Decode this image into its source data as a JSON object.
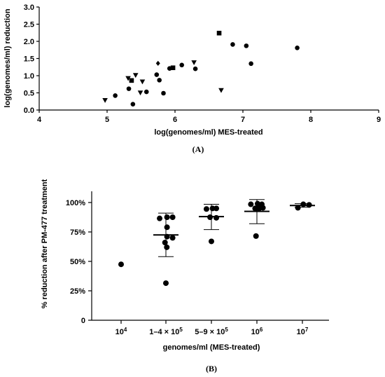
{
  "chart_data": [
    {
      "type": "scatter",
      "panel_label": "(A)",
      "xlabel": "log(genomes/ml) MES-treated",
      "ylabel": "log(genomes/ml) reduction",
      "xlim": [
        4,
        9
      ],
      "ylim": [
        0,
        3.0
      ],
      "x_ticks": [
        "4",
        "5",
        "6",
        "7",
        "8",
        "9"
      ],
      "y_ticks": [
        "0.0",
        "0.5",
        "1.0",
        "1.5",
        "2.0",
        "2.5",
        "3.0"
      ],
      "grid": false,
      "series": [
        {
          "marker": "circle",
          "points": [
            [
              5.12,
              0.42
            ],
            [
              5.32,
              0.62
            ],
            [
              5.38,
              0.17
            ],
            [
              5.58,
              0.53
            ],
            [
              5.73,
              1.03
            ],
            [
              5.77,
              0.87
            ],
            [
              5.83,
              0.49
            ],
            [
              5.92,
              1.21
            ],
            [
              6.1,
              1.31
            ],
            [
              6.3,
              1.2
            ],
            [
              6.85,
              1.91
            ],
            [
              7.05,
              1.87
            ],
            [
              7.12,
              1.35
            ],
            [
              7.8,
              1.81
            ]
          ]
        },
        {
          "marker": "triangle-down",
          "points": [
            [
              4.97,
              0.28
            ],
            [
              5.31,
              0.92
            ],
            [
              5.42,
              1.01
            ],
            [
              5.49,
              0.5
            ],
            [
              5.52,
              0.82
            ],
            [
              6.28,
              1.38
            ],
            [
              6.68,
              0.57
            ]
          ]
        },
        {
          "marker": "square",
          "points": [
            [
              5.36,
              0.86
            ],
            [
              5.97,
              1.23
            ],
            [
              6.65,
              2.24
            ]
          ]
        },
        {
          "marker": "diamond",
          "points": [
            [
              5.75,
              1.36
            ]
          ]
        }
      ]
    },
    {
      "type": "scatter",
      "panel_label": "(B)",
      "xlabel": "genomes/ml (MES-treated)",
      "ylabel": "% reduction after PM-477 treatment",
      "ylim": [
        0,
        100
      ],
      "y_ticks": [
        "0",
        "25%",
        "50%",
        "75%",
        "100%"
      ],
      "categories": [
        {
          "base": "10",
          "sup": "4"
        },
        {
          "base": "1–4 × 10",
          "sup": "5"
        },
        {
          "base": "5–9 × 10",
          "sup": "5"
        },
        {
          "base": "10",
          "sup": "6"
        },
        {
          "base": "10",
          "sup": "7"
        }
      ],
      "groups": [
        {
          "points": [
            [
              0,
              47.5
            ]
          ]
        },
        {
          "points": [
            [
              -0.28,
              86.5
            ],
            [
              0.05,
              87.5
            ],
            [
              0.3,
              87.5
            ],
            [
              0.05,
              79
            ],
            [
              0.05,
              71
            ],
            [
              0.3,
              70
            ],
            [
              -0.04,
              66
            ],
            [
              0.04,
              62
            ],
            [
              0.0,
              31.5
            ]
          ],
          "mean": 72.5,
          "err_low": 54,
          "err_high": 91
        },
        {
          "points": [
            [
              -0.22,
              94.5
            ],
            [
              0.05,
              95
            ],
            [
              0.22,
              95
            ],
            [
              -0.06,
              87.5
            ],
            [
              0.22,
              87
            ],
            [
              0.0,
              67
            ]
          ],
          "mean": 88,
          "err_low": 77,
          "err_high": 98.5
        },
        {
          "points": [
            [
              -0.27,
              98.5
            ],
            [
              0.03,
              99
            ],
            [
              0.22,
              98.5
            ],
            [
              -0.08,
              95
            ],
            [
              0.1,
              95
            ],
            [
              0.27,
              95.5
            ],
            [
              -0.04,
              71.5
            ]
          ],
          "mean": 92.5,
          "err_low": 82,
          "err_high": 102.5
        },
        {
          "points": [
            [
              -0.2,
              95.5
            ],
            [
              0.04,
              98.5
            ],
            [
              0.3,
              98
            ]
          ],
          "mean": 97.5,
          "err_low": 96,
          "err_high": 99
        }
      ]
    }
  ]
}
